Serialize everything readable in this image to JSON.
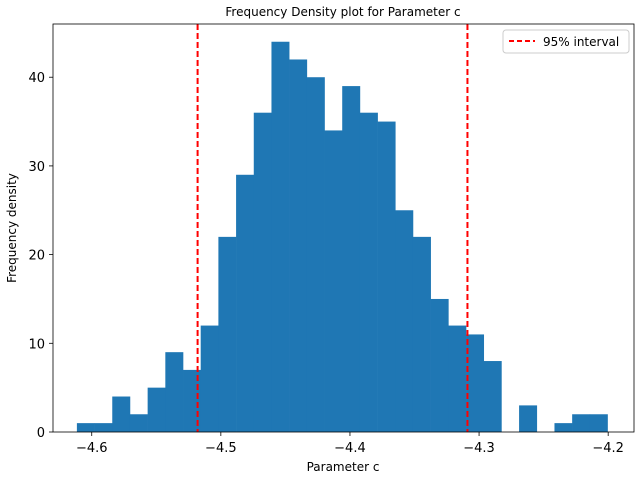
{
  "chart_data": {
    "type": "bar",
    "title": "Frequency Density plot for Parameter c",
    "xlabel": "Parameter c",
    "ylabel": "Frequency density",
    "xlim": [
      -4.63,
      -4.18
    ],
    "ylim": [
      0,
      46
    ],
    "x_ticks": [
      -4.6,
      -4.5,
      -4.4,
      -4.3,
      -4.2
    ],
    "x_tick_labels": [
      "−4.6",
      "−4.5",
      "−4.4",
      "−4.3",
      "−4.2"
    ],
    "y_ticks": [
      0,
      10,
      20,
      30,
      40
    ],
    "y_tick_labels": [
      "0",
      "10",
      "20",
      "30",
      "40"
    ],
    "bar_color": "#1f77b4",
    "bin_edges": [
      -4.6115,
      -4.5978,
      -4.5841,
      -4.5704,
      -4.5567,
      -4.543,
      -4.5293,
      -4.5156,
      -4.5019,
      -4.4882,
      -4.4745,
      -4.4608,
      -4.4471,
      -4.4334,
      -4.4197,
      -4.406,
      -4.3923,
      -4.3786,
      -4.3649,
      -4.3512,
      -4.3375,
      -4.3238,
      -4.3101,
      -4.2964,
      -4.2827,
      -4.269,
      -4.2553,
      -4.2416,
      -4.2279,
      -4.2142,
      -4.2005
    ],
    "values": [
      1,
      1,
      4,
      2,
      5,
      9,
      7,
      12,
      22,
      29,
      36,
      44,
      42,
      40,
      34,
      39,
      36,
      35,
      25,
      22,
      15,
      12,
      11,
      8,
      0,
      3,
      0,
      1,
      2,
      2
    ],
    "interval": {
      "label": "95% interval",
      "lower": -4.518,
      "upper": -4.309,
      "color": "#ff0000"
    },
    "legend_position": "top-right",
    "grid": false
  }
}
